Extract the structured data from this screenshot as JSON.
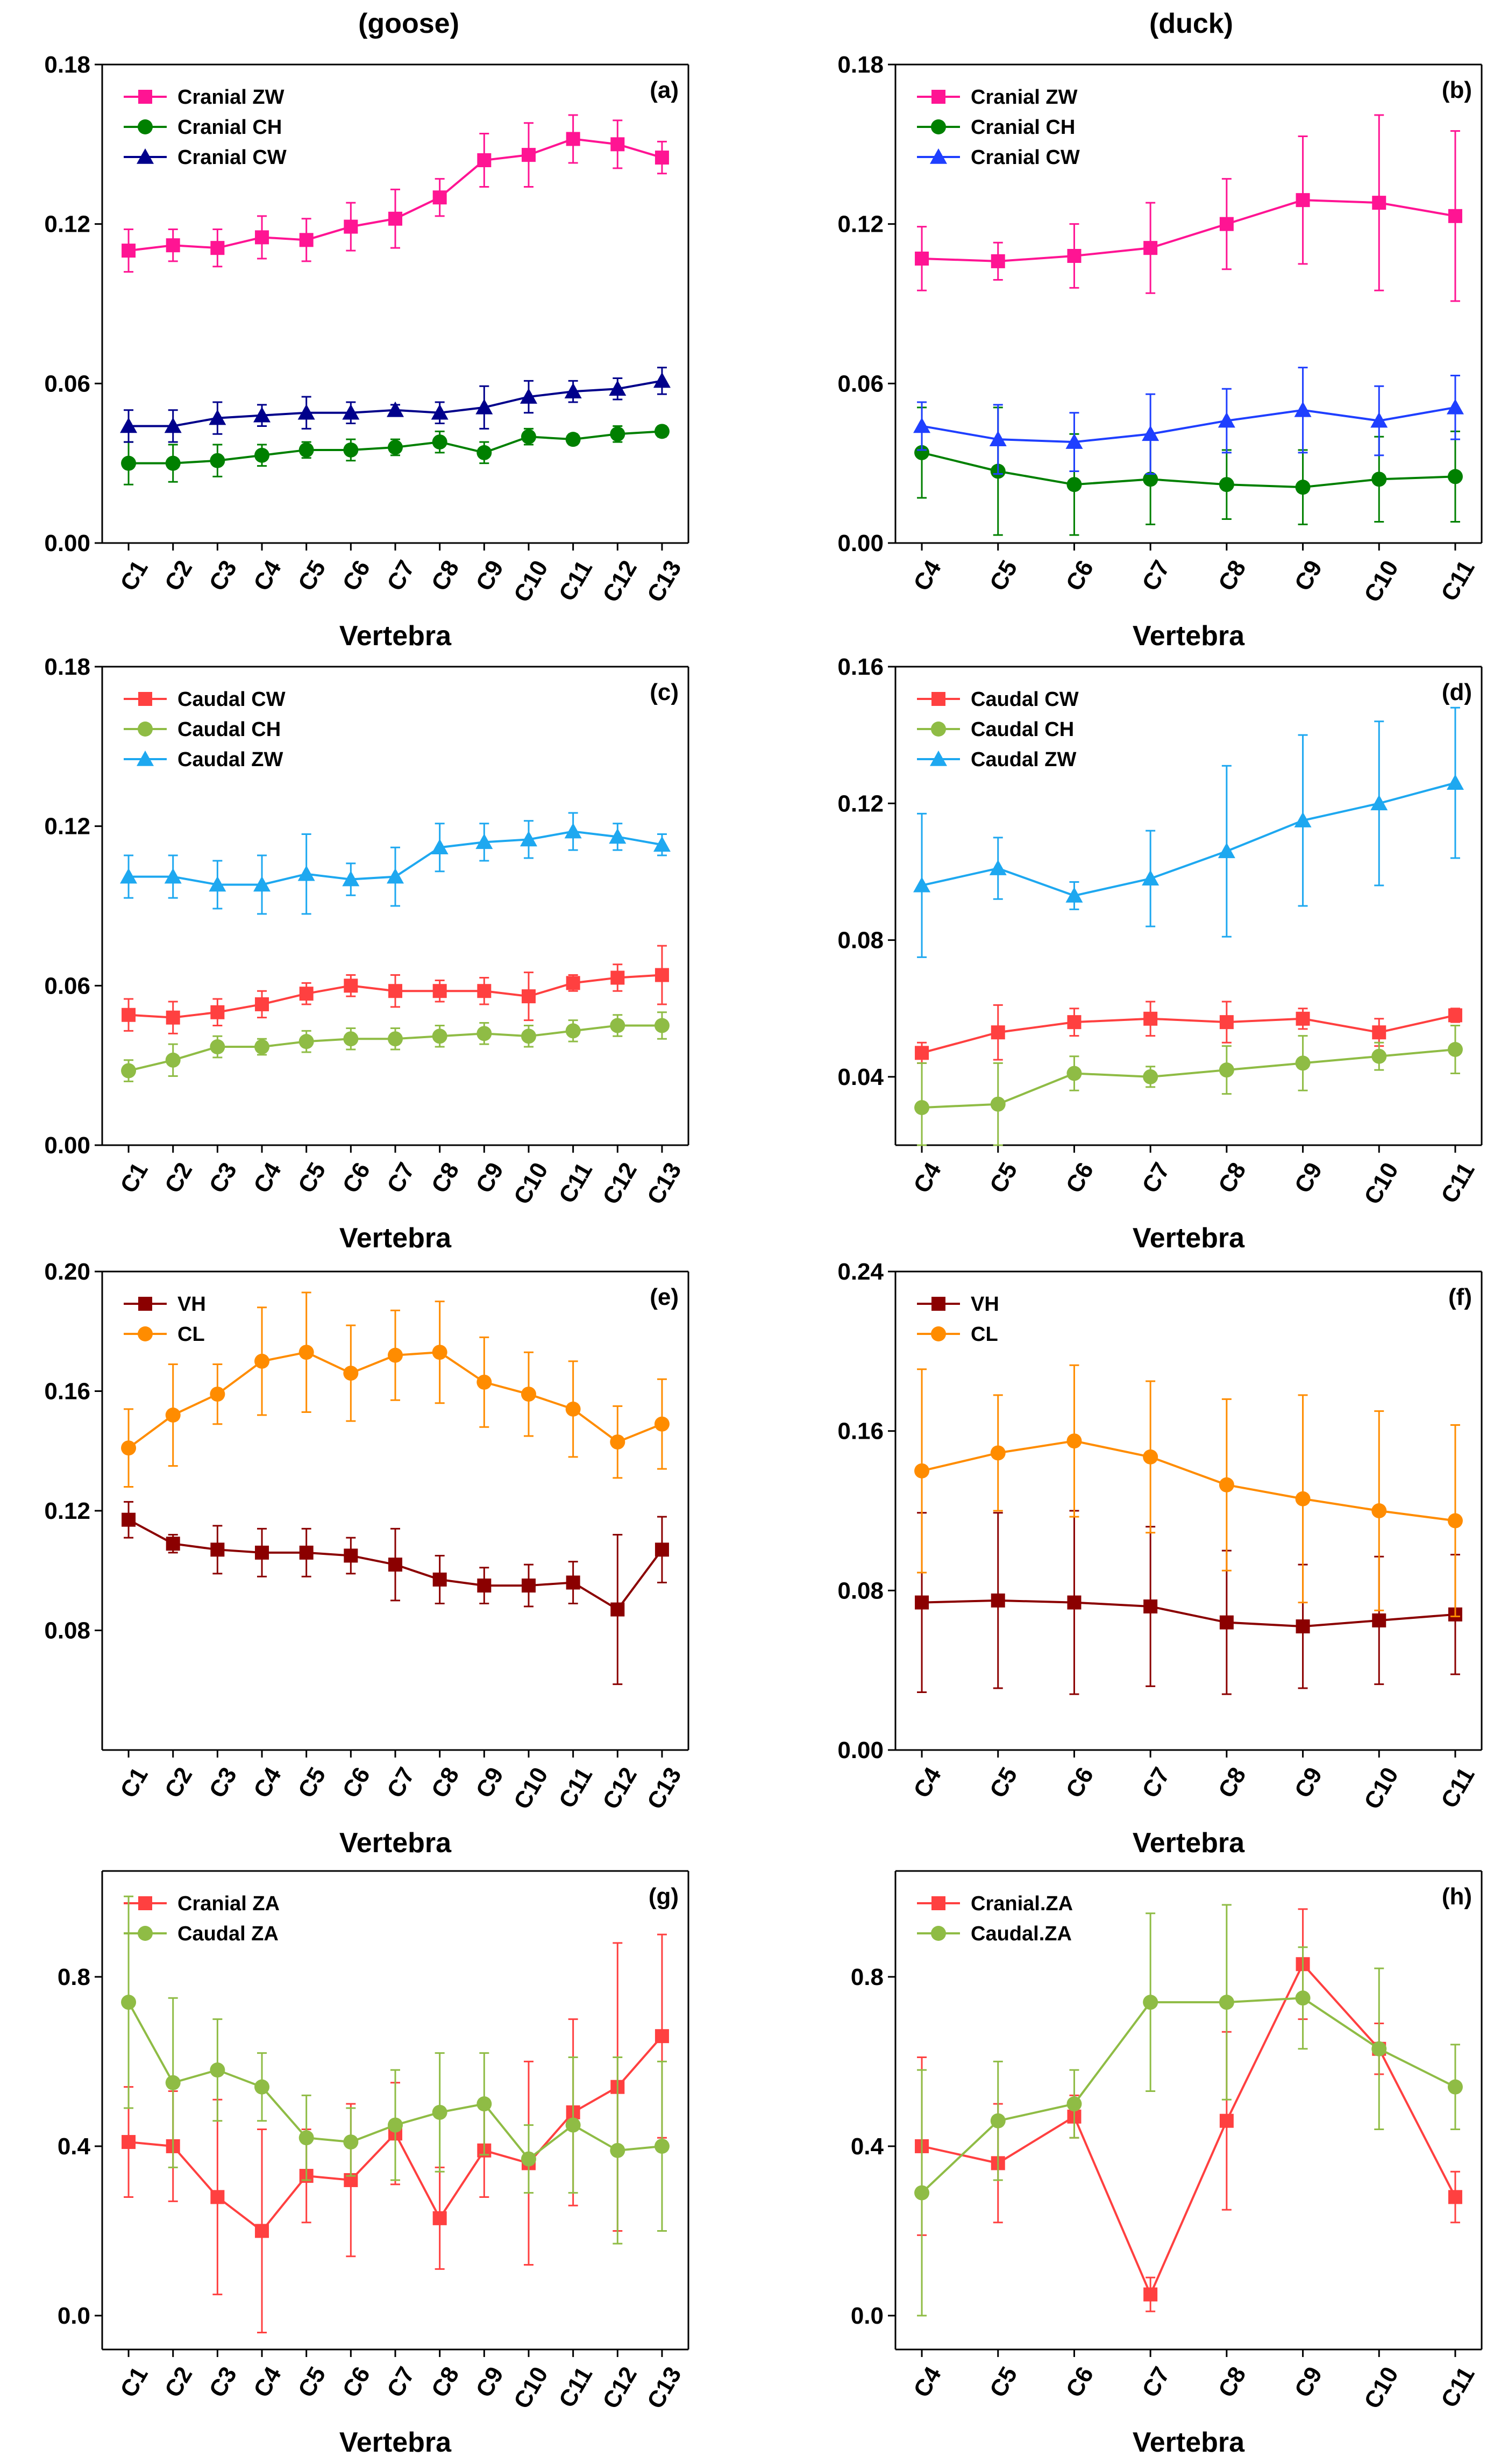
{
  "column_titles": {
    "goose": "(goose)",
    "duck": "(duck)"
  },
  "chart_data": [
    {
      "id": "a",
      "panel_label": "(a)",
      "type": "line",
      "xlabel": "Vertebra",
      "categories": [
        "C1",
        "C2",
        "C3",
        "C4",
        "C5",
        "C6",
        "C7",
        "C8",
        "C9",
        "C10",
        "C11",
        "C12",
        "C13"
      ],
      "ylim": [
        0,
        0.18
      ],
      "yticks": [
        "0.00",
        "0.06",
        "0.12",
        "0.18"
      ],
      "legend_position": "top-left",
      "series": [
        {
          "name": "Cranial ZW",
          "color": "#ff1493",
          "marker": "square",
          "values": [
            0.11,
            0.112,
            0.111,
            0.115,
            0.114,
            0.119,
            0.122,
            0.13,
            0.144,
            0.146,
            0.152,
            0.15,
            0.145
          ],
          "errors": [
            0.008,
            0.006,
            0.007,
            0.008,
            0.008,
            0.009,
            0.011,
            0.007,
            0.01,
            0.012,
            0.009,
            0.009,
            0.006
          ]
        },
        {
          "name": "Cranial CH",
          "color": "#008000",
          "marker": "circle",
          "values": [
            0.03,
            0.03,
            0.031,
            0.033,
            0.035,
            0.035,
            0.036,
            0.038,
            0.034,
            0.04,
            0.039,
            0.041,
            0.042
          ],
          "errors": [
            0.008,
            0.007,
            0.006,
            0.004,
            0.003,
            0.004,
            0.003,
            0.004,
            0.004,
            0.003,
            0.002,
            0.003,
            0.002
          ]
        },
        {
          "name": "Cranial CW",
          "color": "#00008b",
          "marker": "triangle",
          "values": [
            0.044,
            0.044,
            0.047,
            0.048,
            0.049,
            0.049,
            0.05,
            0.049,
            0.051,
            0.055,
            0.057,
            0.058,
            0.061
          ],
          "errors": [
            0.006,
            0.006,
            0.006,
            0.004,
            0.006,
            0.004,
            0.002,
            0.004,
            0.008,
            0.006,
            0.004,
            0.004,
            0.005
          ]
        }
      ]
    },
    {
      "id": "b",
      "panel_label": "(b)",
      "type": "line",
      "xlabel": "Vertebra",
      "categories": [
        "C4",
        "C5",
        "C6",
        "C7",
        "C8",
        "C9",
        "C10",
        "C11"
      ],
      "ylim": [
        0,
        0.18
      ],
      "yticks": [
        "0.00",
        "0.06",
        "0.12",
        "0.18"
      ],
      "legend_position": "top-left",
      "series": [
        {
          "name": "Cranial ZW",
          "color": "#ff1493",
          "marker": "square",
          "values": [
            0.107,
            0.106,
            0.108,
            0.111,
            0.12,
            0.129,
            0.128,
            0.123
          ],
          "errors": [
            0.012,
            0.007,
            0.012,
            0.017,
            0.017,
            0.024,
            0.033,
            0.032
          ]
        },
        {
          "name": "Cranial CH",
          "color": "#008000",
          "marker": "circle",
          "values": [
            0.034,
            0.027,
            0.022,
            0.024,
            0.022,
            0.021,
            0.024,
            0.025
          ],
          "errors": [
            0.017,
            0.024,
            0.019,
            0.017,
            0.013,
            0.014,
            0.016,
            0.017
          ]
        },
        {
          "name": "Cranial CW",
          "color": "#1f3fff",
          "marker": "triangle",
          "values": [
            0.044,
            0.039,
            0.038,
            0.041,
            0.046,
            0.05,
            0.046,
            0.051
          ],
          "errors": [
            0.009,
            0.013,
            0.011,
            0.015,
            0.012,
            0.016,
            0.013,
            0.012
          ]
        }
      ]
    },
    {
      "id": "c",
      "panel_label": "(c)",
      "type": "line",
      "xlabel": "Vertebra",
      "categories": [
        "C1",
        "C2",
        "C3",
        "C4",
        "C5",
        "C6",
        "C7",
        "C8",
        "C9",
        "C10",
        "C11",
        "C12",
        "C13"
      ],
      "ylim": [
        0,
        0.18
      ],
      "yticks": [
        "0.00",
        "0.06",
        "0.12",
        "0.18"
      ],
      "legend_position": "top-left",
      "series": [
        {
          "name": "Caudal CW",
          "color": "#ff4040",
          "marker": "square",
          "values": [
            0.049,
            0.048,
            0.05,
            0.053,
            0.057,
            0.06,
            0.058,
            0.058,
            0.058,
            0.056,
            0.061,
            0.063,
            0.064
          ],
          "errors": [
            0.006,
            0.006,
            0.005,
            0.005,
            0.004,
            0.004,
            0.006,
            0.004,
            0.005,
            0.009,
            0.003,
            0.005,
            0.011
          ]
        },
        {
          "name": "Caudal CH",
          "color": "#8fbc45",
          "marker": "circle",
          "values": [
            0.028,
            0.032,
            0.037,
            0.037,
            0.039,
            0.04,
            0.04,
            0.041,
            0.042,
            0.041,
            0.043,
            0.045,
            0.045
          ],
          "errors": [
            0.004,
            0.006,
            0.004,
            0.003,
            0.004,
            0.004,
            0.004,
            0.004,
            0.004,
            0.004,
            0.004,
            0.004,
            0.005
          ]
        },
        {
          "name": "Caudal ZW",
          "color": "#1ea8f0",
          "marker": "triangle",
          "values": [
            0.101,
            0.101,
            0.098,
            0.098,
            0.102,
            0.1,
            0.101,
            0.112,
            0.114,
            0.115,
            0.118,
            0.116,
            0.113
          ],
          "errors": [
            0.008,
            0.008,
            0.009,
            0.011,
            0.015,
            0.006,
            0.011,
            0.009,
            0.007,
            0.007,
            0.007,
            0.005,
            0.004
          ]
        }
      ]
    },
    {
      "id": "d",
      "panel_label": "(d)",
      "type": "line",
      "xlabel": "Vertebra",
      "categories": [
        "C4",
        "C5",
        "C6",
        "C7",
        "C8",
        "C9",
        "C10",
        "C11"
      ],
      "ylim": [
        0.02,
        0.16
      ],
      "yticks": [
        "0.04",
        "0.08",
        "0.12",
        "0.16"
      ],
      "legend_position": "top-left",
      "series": [
        {
          "name": "Caudal CW",
          "color": "#ff4040",
          "marker": "square",
          "values": [
            0.047,
            0.053,
            0.056,
            0.057,
            0.056,
            0.057,
            0.053,
            0.058
          ],
          "errors": [
            0.003,
            0.008,
            0.004,
            0.005,
            0.006,
            0.003,
            0.004,
            0.002
          ]
        },
        {
          "name": "Caudal CH",
          "color": "#8fbc45",
          "marker": "circle",
          "values": [
            0.031,
            0.032,
            0.041,
            0.04,
            0.042,
            0.044,
            0.046,
            0.048
          ],
          "errors": [
            0.013,
            0.012,
            0.005,
            0.003,
            0.007,
            0.008,
            0.004,
            0.007
          ]
        },
        {
          "name": "Caudal ZW",
          "color": "#1ea8f0",
          "marker": "triangle",
          "values": [
            0.096,
            0.101,
            0.093,
            0.098,
            0.106,
            0.115,
            0.12,
            0.126
          ],
          "errors": [
            0.021,
            0.009,
            0.004,
            0.014,
            0.025,
            0.025,
            0.024,
            0.022
          ]
        }
      ]
    },
    {
      "id": "e",
      "panel_label": "(e)",
      "type": "line",
      "xlabel": "Vertebra",
      "categories": [
        "C1",
        "C2",
        "C3",
        "C4",
        "C5",
        "C6",
        "C7",
        "C8",
        "C9",
        "C10",
        "C11",
        "C12",
        "C13"
      ],
      "ylim": [
        0.04,
        0.2
      ],
      "yticks": [
        "0.08",
        "0.12",
        "0.16",
        "0.20"
      ],
      "legend_position": "top-left",
      "series": [
        {
          "name": "VH",
          "color": "#8b0000",
          "marker": "square",
          "values": [
            0.117,
            0.109,
            0.107,
            0.106,
            0.106,
            0.105,
            0.102,
            0.097,
            0.095,
            0.095,
            0.096,
            0.087,
            0.107
          ],
          "errors": [
            0.006,
            0.003,
            0.008,
            0.008,
            0.008,
            0.006,
            0.012,
            0.008,
            0.006,
            0.007,
            0.007,
            0.025,
            0.011
          ]
        },
        {
          "name": "CL",
          "color": "#ff8c00",
          "marker": "circle",
          "values": [
            0.141,
            0.152,
            0.159,
            0.17,
            0.173,
            0.166,
            0.172,
            0.173,
            0.163,
            0.159,
            0.154,
            0.143,
            0.149
          ],
          "errors": [
            0.013,
            0.017,
            0.01,
            0.018,
            0.02,
            0.016,
            0.015,
            0.017,
            0.015,
            0.014,
            0.016,
            0.012,
            0.015
          ]
        }
      ]
    },
    {
      "id": "f",
      "panel_label": "(f)",
      "type": "line",
      "xlabel": "Vertebra",
      "categories": [
        "C4",
        "C5",
        "C6",
        "C7",
        "C8",
        "C9",
        "C10",
        "C11"
      ],
      "ylim": [
        0,
        0.24
      ],
      "yticks": [
        "0.00",
        "0.08",
        "0.16",
        "0.24"
      ],
      "legend_position": "top-left",
      "series": [
        {
          "name": "VH",
          "color": "#8b0000",
          "marker": "square",
          "values": [
            0.074,
            0.075,
            0.074,
            0.072,
            0.064,
            0.062,
            0.065,
            0.068
          ],
          "errors": [
            0.045,
            0.044,
            0.046,
            0.04,
            0.036,
            0.031,
            0.032,
            0.03
          ]
        },
        {
          "name": "CL",
          "color": "#ff8c00",
          "marker": "circle",
          "values": [
            0.14,
            0.149,
            0.155,
            0.147,
            0.133,
            0.126,
            0.12,
            0.115
          ],
          "errors": [
            0.051,
            0.029,
            0.038,
            0.038,
            0.043,
            0.052,
            0.05,
            0.048
          ]
        }
      ]
    },
    {
      "id": "g",
      "panel_label": "(g)",
      "type": "line",
      "xlabel": "Vertebra",
      "categories": [
        "C1",
        "C2",
        "C3",
        "C4",
        "C5",
        "C6",
        "C7",
        "C8",
        "C9",
        "C10",
        "C11",
        "C12",
        "C13"
      ],
      "ylim": [
        -0.08,
        1.05
      ],
      "yticks": [
        "0.0",
        "0.4",
        "0.8"
      ],
      "legend_position": "top-left",
      "series": [
        {
          "name": "Cranial ZA",
          "color": "#ff4040",
          "marker": "square",
          "values": [
            0.41,
            0.4,
            0.28,
            0.2,
            0.33,
            0.32,
            0.43,
            0.23,
            0.39,
            0.36,
            0.48,
            0.54,
            0.66
          ],
          "errors": [
            0.13,
            0.13,
            0.23,
            0.24,
            0.11,
            0.18,
            0.12,
            0.12,
            0.11,
            0.24,
            0.22,
            0.34,
            0.24
          ]
        },
        {
          "name": "Caudal ZA",
          "color": "#8fbc45",
          "marker": "circle",
          "values": [
            0.74,
            0.55,
            0.58,
            0.54,
            0.42,
            0.41,
            0.45,
            0.48,
            0.5,
            0.37,
            0.45,
            0.39,
            0.4
          ],
          "errors": [
            0.25,
            0.2,
            0.12,
            0.08,
            0.1,
            0.08,
            0.13,
            0.14,
            0.12,
            0.08,
            0.16,
            0.22,
            0.2
          ]
        }
      ]
    },
    {
      "id": "h",
      "panel_label": "(h)",
      "type": "line",
      "xlabel": "Vertebra",
      "categories": [
        "C4",
        "C5",
        "C6",
        "C7",
        "C8",
        "C9",
        "C10",
        "C11"
      ],
      "ylim": [
        -0.08,
        1.05
      ],
      "yticks": [
        "0.0",
        "0.4",
        "0.8"
      ],
      "legend_position": "top-left",
      "series": [
        {
          "name": "Cranial.ZA",
          "color": "#ff4040",
          "marker": "square",
          "values": [
            0.4,
            0.36,
            0.47,
            0.05,
            0.46,
            0.83,
            0.63,
            0.28
          ],
          "errors": [
            0.21,
            0.14,
            0.05,
            0.04,
            0.21,
            0.13,
            0.06,
            0.06
          ]
        },
        {
          "name": "Caudal.ZA",
          "color": "#8fbc45",
          "marker": "circle",
          "values": [
            0.29,
            0.46,
            0.5,
            0.74,
            0.74,
            0.75,
            0.63,
            0.54
          ],
          "errors": [
            0.29,
            0.14,
            0.08,
            0.21,
            0.23,
            0.12,
            0.19,
            0.1
          ]
        }
      ]
    }
  ]
}
